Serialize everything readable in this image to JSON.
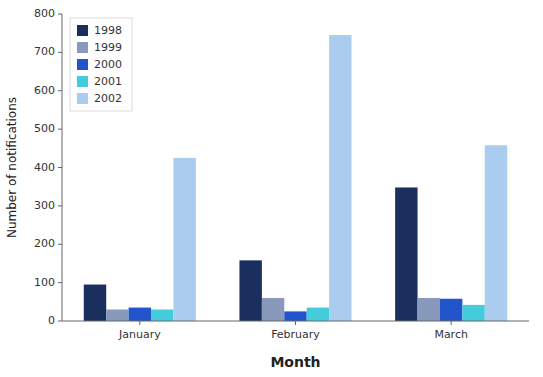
{
  "chart_data": {
    "type": "bar",
    "categories": [
      "January",
      "February",
      "March"
    ],
    "series": [
      {
        "name": "1998",
        "color": "#1b2f5e",
        "values": [
          95,
          158,
          348
        ]
      },
      {
        "name": "1999",
        "color": "#8899bb",
        "values": [
          30,
          60,
          60
        ]
      },
      {
        "name": "2000",
        "color": "#2255cc",
        "values": [
          35,
          25,
          58
        ]
      },
      {
        "name": "2001",
        "color": "#44ccdd",
        "values": [
          30,
          35,
          42
        ]
      },
      {
        "name": "2002",
        "color": "#aaccee",
        "values": [
          425,
          745,
          458
        ]
      }
    ],
    "xlabel": "Month",
    "ylabel": "Number of notifications",
    "ylim": [
      0,
      800
    ],
    "yticks": [
      0,
      100,
      200,
      300,
      400,
      500,
      600,
      700,
      800
    ],
    "grid": false,
    "legend": "upper left"
  }
}
